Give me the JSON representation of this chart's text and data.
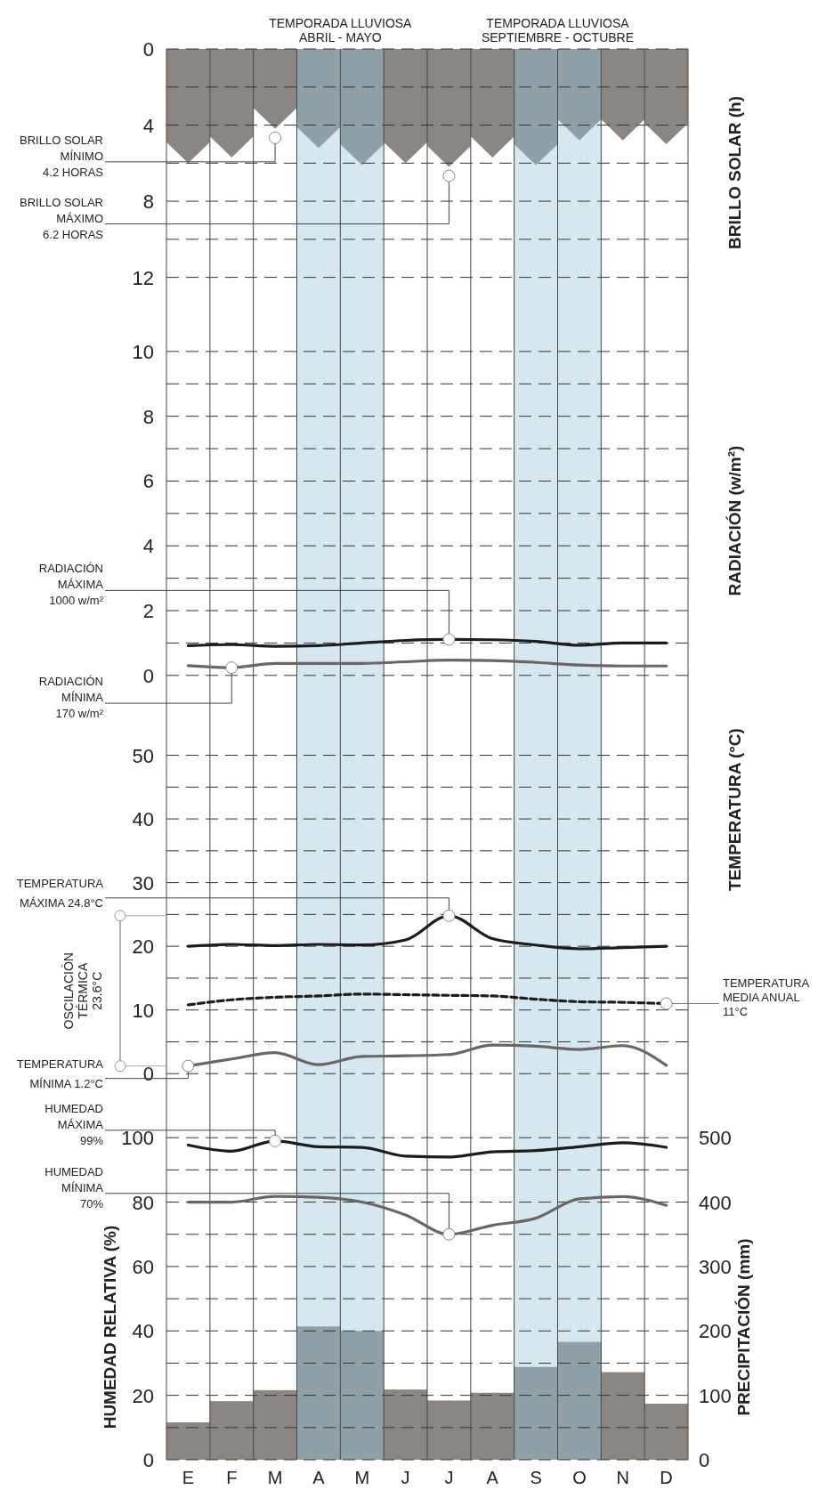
{
  "chart_data": [
    {
      "type": "bar",
      "ylabel": "BRILLO SOLAR (h)",
      "categories": [
        null,
        null,
        null,
        null,
        null,
        null,
        null,
        null,
        null,
        null,
        null,
        null
      ],
      "values": [
        6.0,
        5.7,
        4.2,
        5.2,
        6.1,
        6.0,
        6.2,
        5.7,
        6.1,
        4.8,
        4.8,
        5.0
      ],
      "colors": [
        "#8c8683",
        "#8c8683",
        "#8c8683",
        "#8fa1a6",
        "#8fa1a6",
        "#8c8683",
        "#8c8683",
        "#8c8683",
        "#8fa1a6",
        "#8fa1a6",
        "#8c8683",
        "#8c8683"
      ],
      "ylim": [
        13,
        0
      ],
      "yticks": [
        0,
        {
          "value": 2,
          "label": null
        },
        4,
        {
          "value": 6,
          "label": null
        },
        8,
        {
          "value": 10,
          "label": null
        },
        12
      ],
      "tick_labels": "y",
      "grid": true,
      "annotations": [
        "BRILLO SOLAR\nMÍNIMO\n4.2 HORAS",
        "BRILLO SOLAR\nMÁXIMO\n6.2 HORAS",
        "TEMPORADA LLUVIOSA\nABRIL - MAYO",
        "TEMPORADA LLUVIOSA\nSEPTIEMBRE - OCTUBRE"
      ]
    },
    {
      "type": "line",
      "ylabel": "RADIACIÓN (w/m²)",
      "categories": [
        null,
        null,
        null,
        null,
        null,
        null,
        null,
        null,
        null,
        null,
        null,
        null
      ],
      "ylim": [
        -0.5,
        11.7
      ],
      "yticks": [
        0,
        {
          "value": 1,
          "label": null
        },
        2,
        {
          "value": 3,
          "label": null
        },
        4,
        {
          "value": 5,
          "label": null
        },
        6,
        {
          "value": 7,
          "label": null
        },
        8,
        {
          "value": 9,
          "label": null
        },
        10
      ],
      "tick_labels": "y",
      "grid": true,
      "series": [
        {
          "color": "#1c1c1c",
          "values": [
            0.92,
            0.95,
            0.9,
            0.92,
            1.0,
            1.08,
            1.11,
            1.1,
            1.05,
            0.93,
            1.0,
            1.0
          ]
        },
        {
          "color": "#6b6565",
          "values": [
            0.3,
            0.24,
            0.37,
            0.37,
            0.37,
            0.42,
            0.47,
            0.46,
            0.4,
            0.32,
            0.29,
            0.29
          ]
        }
      ],
      "annotations": [
        "RADIACIÓN\nMÁXIMA\n1000 w/m²",
        "RADIACIÓN\nMÍNIMA\n170 w/m²"
      ]
    },
    {
      "type": "line",
      "ylabel": "TEMPERATURA (°C)",
      "categories": [
        null,
        null,
        null,
        null,
        null,
        null,
        null,
        null,
        null,
        null,
        null,
        null
      ],
      "ylim": [
        -5,
        60
      ],
      "yticks": [
        0,
        {
          "value": 5,
          "label": null
        },
        10,
        {
          "value": 15,
          "label": null
        },
        20,
        {
          "value": 25,
          "label": null
        },
        30,
        {
          "value": 35,
          "label": null
        },
        40,
        {
          "value": 45,
          "label": null
        },
        50
      ],
      "tick_labels": "y",
      "grid": true,
      "series": [
        {
          "color": "#1c1c1c",
          "values": [
            20.0,
            20.3,
            20.1,
            20.3,
            20.2,
            21.0,
            24.8,
            21.2,
            20.2,
            19.6,
            19.8,
            20.0
          ]
        },
        {
          "color": "#1c1c1c",
          "line_style": "dashed",
          "values": [
            10.8,
            11.6,
            12.0,
            12.2,
            12.5,
            12.4,
            12.3,
            12.2,
            11.7,
            11.3,
            11.2,
            11.0
          ]
        },
        {
          "color": "#6b6565",
          "values": [
            1.2,
            2.3,
            3.3,
            1.4,
            2.7,
            2.8,
            3.0,
            4.5,
            4.3,
            3.8,
            4.4,
            1.3
          ]
        }
      ],
      "annotations": [
        "TEMPERATURA\nMÁXIMA 24.8°C",
        "TEMPERATURA\nMÍNIMA 1.2°C",
        "TEMPERATURA\nMEDIA ANUAL\n11°C",
        "OSCILACIÓN\nTÉRMICA\n23.6°C"
      ]
    },
    {
      "type": "line",
      "ylabel": "HUMEDAD RELATIVA (%)",
      "y2label": "PRECIPITACIÓN (mm)",
      "categories": [
        "E",
        "F",
        "M",
        "A",
        "M",
        "J",
        "J",
        "A",
        "S",
        "O",
        "N",
        "D"
      ],
      "ylim": [
        0,
        110
      ],
      "y2lim": [
        0,
        550
      ],
      "yticks": [
        0,
        {
          "value": 10,
          "label": null
        },
        20,
        {
          "value": 30,
          "label": null
        },
        40,
        {
          "value": 50,
          "label": null
        },
        60,
        {
          "value": 70,
          "label": null
        },
        80,
        {
          "value": 90,
          "label": null
        },
        100
      ],
      "y2ticks": [
        0,
        100,
        200,
        300,
        400,
        500
      ],
      "grid": true,
      "series": [
        {
          "type": "bar",
          "axis": "y2",
          "values": [
            58,
            91,
            108,
            207,
            200,
            109,
            92,
            104,
            144,
            183,
            136,
            87
          ],
          "colors": [
            "#8c8683",
            "#8c8683",
            "#8c8683",
            "#8fa1a6",
            "#8fa1a6",
            "#8c8683",
            "#8c8683",
            "#8c8683",
            "#8fa1a6",
            "#8fa1a6",
            "#8c8683",
            "#8c8683"
          ]
        },
        {
          "color": "#1c1c1c",
          "values": [
            97.7,
            95.8,
            99,
            97.2,
            97,
            94.3,
            94,
            95.6,
            96,
            97.2,
            98.4,
            97.0
          ]
        },
        {
          "color": "#6b6565",
          "values": [
            80,
            80,
            81.8,
            81.5,
            80,
            76,
            70,
            72.8,
            75,
            81,
            81.7,
            79
          ]
        }
      ],
      "annotations": [
        {
          "text": "HUMEDAD\nMÁXIMA\n99%",
          "x": "M",
          "y": 99
        },
        "HUMEDAD\nMÍNIMA\n70%"
      ]
    }
  ]
}
